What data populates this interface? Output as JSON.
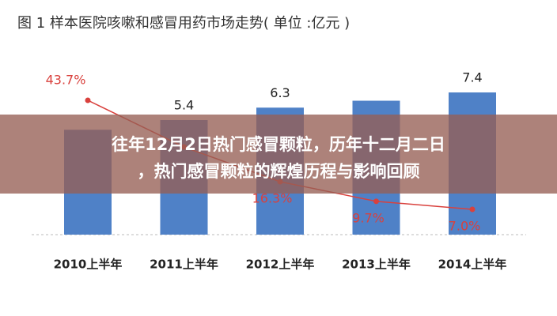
{
  "chart_data": {
    "type": "bar_line",
    "title": "图 1  样本医院咳嗽和感冒用药市场走势( 单位  :亿元 )",
    "categories": [
      "2010上半年",
      "2011上半年",
      "2012上半年",
      "2013上半年",
      "2014上半年"
    ],
    "series": [
      {
        "type": "bar",
        "color": "#4f81c7",
        "values": [
          4.7,
          5.4,
          6.3,
          6.8,
          7.4
        ],
        "value_labels": [
          null,
          "5.4",
          "6.3",
          null,
          "7.4"
        ]
      },
      {
        "type": "line",
        "color": "#d9413d",
        "values": [
          43.7,
          28,
          16.3,
          9.7,
          7.0
        ],
        "value_labels": [
          "43.7%",
          null,
          "16.3%",
          "9.7%",
          "7.0%"
        ]
      }
    ]
  },
  "overlay": {
    "lines": [
      "往年12月2日热门感冒颗粒，历年十二月二日",
      "，热门感冒颗粒的辉煌历程与影响回顾"
    ]
  }
}
